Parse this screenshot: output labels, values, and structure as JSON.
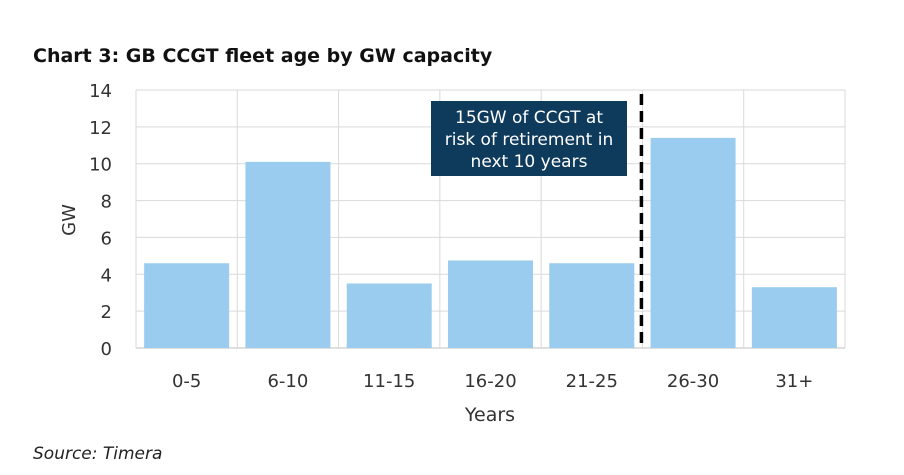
{
  "title": "Chart 3: GB CCGT fleet age by GW capacity",
  "source": "Source: Timera",
  "colors": {
    "bar": "#99ccee",
    "annotation_bg": "#0e3a5c",
    "grid": "#d9d9d9",
    "divider": "#000000"
  },
  "annotation": {
    "lines": [
      "15GW of CCGT at",
      "risk of retirement in",
      "next 10 years"
    ]
  },
  "chart_data": {
    "type": "bar",
    "title": "Chart 3: GB CCGT fleet age by GW capacity",
    "xlabel": "Years",
    "ylabel": "GW",
    "categories": [
      "0-5",
      "6-10",
      "11-15",
      "16-20",
      "21-25",
      "26-30",
      "31+"
    ],
    "values": [
      4.6,
      10.1,
      3.5,
      4.75,
      4.6,
      11.4,
      3.3
    ],
    "ylim": [
      0,
      14
    ],
    "yticks": [
      0,
      2,
      4,
      6,
      8,
      10,
      12,
      14
    ],
    "grid": true,
    "divider_after_category": "21-25"
  }
}
